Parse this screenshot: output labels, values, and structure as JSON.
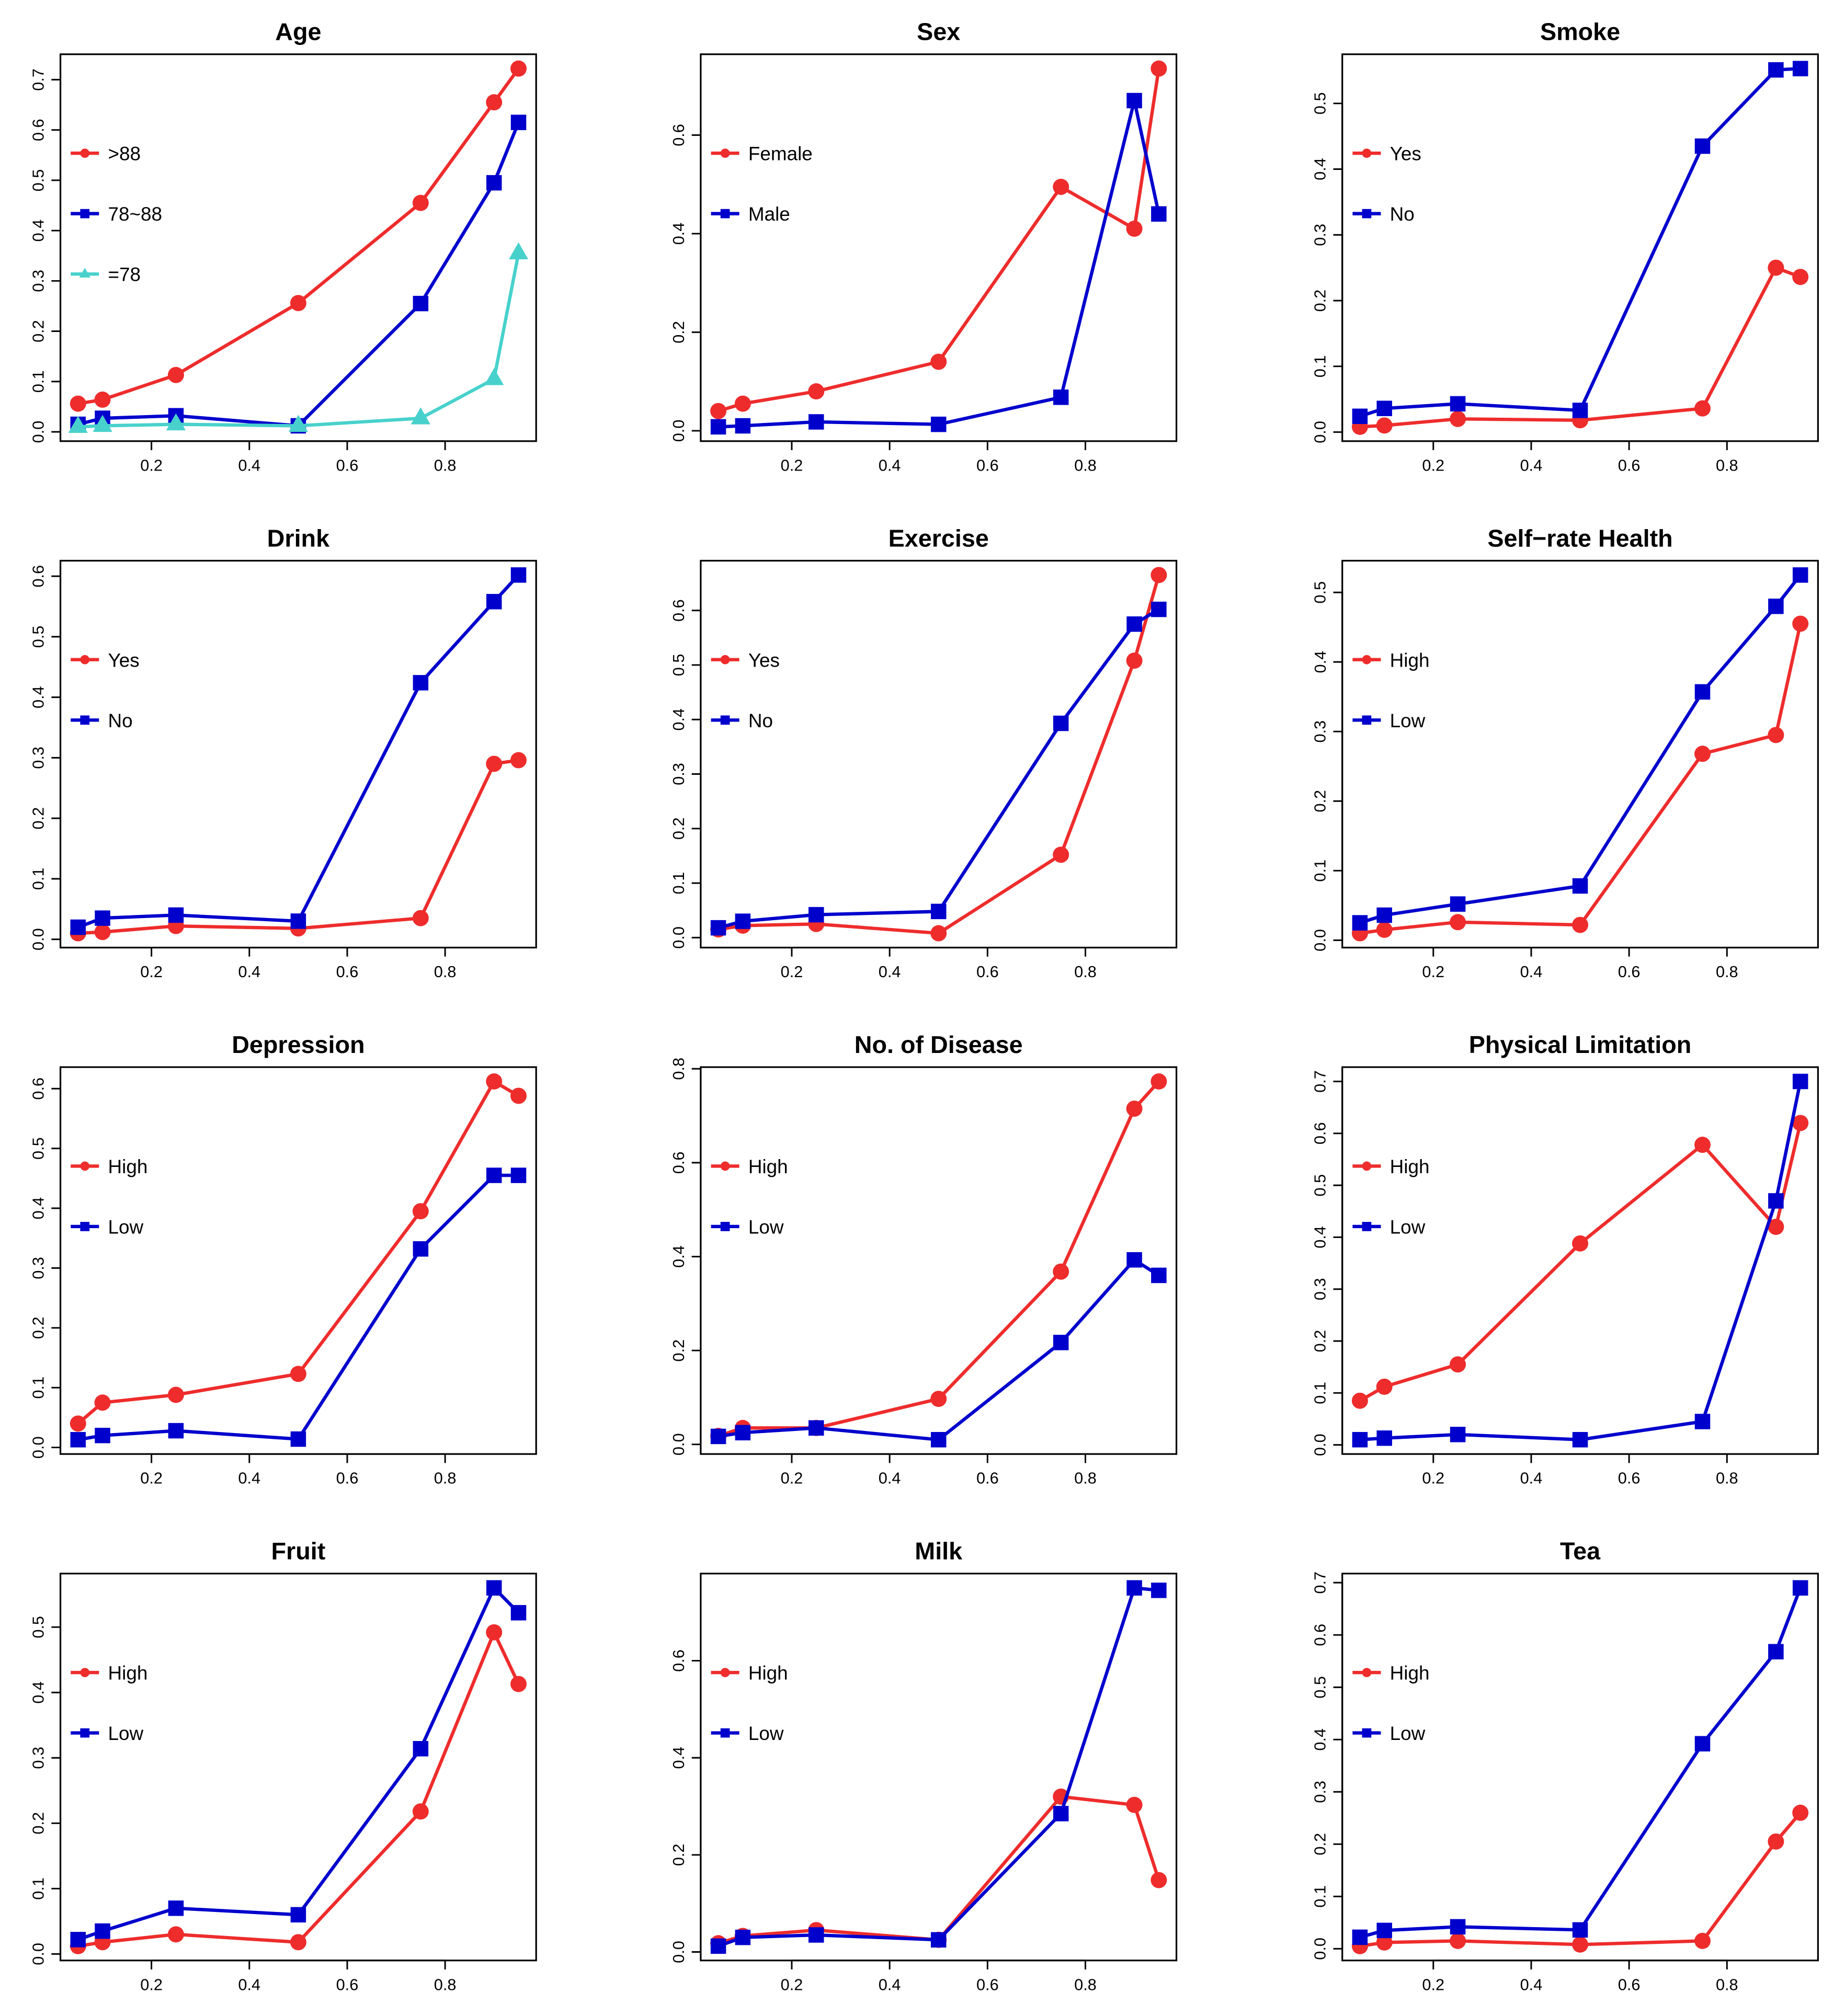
{
  "colors": {
    "red": "#ee2c2c",
    "blue": "#0000cd",
    "cyan": "#48d1cc"
  },
  "chart_data": [
    {
      "type": "line",
      "title": "Age",
      "x": [
        0.05,
        0.1,
        0.25,
        0.5,
        0.75,
        0.9,
        0.95
      ],
      "xticks": [
        0.2,
        0.4,
        0.6,
        0.8
      ],
      "yticks": [
        0,
        0.1,
        0.2,
        0.3,
        0.4,
        0.5,
        0.6,
        0.7
      ],
      "series": [
        {
          "name": ">88",
          "color": "red",
          "marker": "circle",
          "values": [
            0.056,
            0.064,
            0.113,
            0.256,
            0.455,
            0.655,
            0.722
          ]
        },
        {
          "name": "78~88",
          "color": "blue",
          "marker": "square",
          "values": [
            0.015,
            0.027,
            0.032,
            0.012,
            0.255,
            0.495,
            0.615
          ]
        },
        {
          "name": "=78",
          "color": "cyan",
          "marker": "triangle",
          "values": [
            0.01,
            0.012,
            0.015,
            0.012,
            0.027,
            0.105,
            0.355
          ]
        }
      ]
    },
    {
      "type": "line",
      "title": "Sex",
      "x": [
        0.05,
        0.1,
        0.25,
        0.5,
        0.75,
        0.9,
        0.95
      ],
      "xticks": [
        0.2,
        0.4,
        0.6,
        0.8
      ],
      "yticks": [
        0,
        0.2,
        0.4,
        0.6
      ],
      "series": [
        {
          "name": "Female",
          "color": "red",
          "marker": "circle",
          "values": [
            0.04,
            0.055,
            0.08,
            0.14,
            0.495,
            0.41,
            0.735
          ]
        },
        {
          "name": "Male",
          "color": "blue",
          "marker": "square",
          "values": [
            0.008,
            0.01,
            0.018,
            0.013,
            0.068,
            0.67,
            0.44
          ]
        }
      ]
    },
    {
      "type": "line",
      "title": "Smoke",
      "x": [
        0.05,
        0.1,
        0.25,
        0.5,
        0.75,
        0.9,
        0.95
      ],
      "xticks": [
        0.2,
        0.4,
        0.6,
        0.8
      ],
      "yticks": [
        0,
        0.1,
        0.2,
        0.3,
        0.4,
        0.5
      ],
      "series": [
        {
          "name": "Yes",
          "color": "red",
          "marker": "circle",
          "values": [
            0.008,
            0.01,
            0.02,
            0.018,
            0.036,
            0.25,
            0.236
          ]
        },
        {
          "name": "No",
          "color": "blue",
          "marker": "square",
          "values": [
            0.024,
            0.036,
            0.043,
            0.033,
            0.435,
            0.551,
            0.553
          ]
        }
      ]
    },
    {
      "type": "line",
      "title": "Drink",
      "x": [
        0.05,
        0.1,
        0.25,
        0.5,
        0.75,
        0.9,
        0.95
      ],
      "xticks": [
        0.2,
        0.4,
        0.6,
        0.8
      ],
      "yticks": [
        0,
        0.1,
        0.2,
        0.3,
        0.4,
        0.5,
        0.6
      ],
      "series": [
        {
          "name": "Yes",
          "color": "red",
          "marker": "circle",
          "values": [
            0.01,
            0.012,
            0.022,
            0.018,
            0.035,
            0.29,
            0.296
          ]
        },
        {
          "name": "No",
          "color": "blue",
          "marker": "square",
          "values": [
            0.02,
            0.035,
            0.04,
            0.03,
            0.424,
            0.558,
            0.602
          ]
        }
      ]
    },
    {
      "type": "line",
      "title": "Exercise",
      "x": [
        0.05,
        0.1,
        0.25,
        0.5,
        0.75,
        0.9,
        0.95
      ],
      "xticks": [
        0.2,
        0.4,
        0.6,
        0.8
      ],
      "yticks": [
        0,
        0.1,
        0.2,
        0.3,
        0.4,
        0.5,
        0.6
      ],
      "series": [
        {
          "name": "Yes",
          "color": "red",
          "marker": "circle",
          "values": [
            0.015,
            0.022,
            0.025,
            0.008,
            0.152,
            0.508,
            0.665
          ]
        },
        {
          "name": "No",
          "color": "blue",
          "marker": "square",
          "values": [
            0.018,
            0.03,
            0.042,
            0.048,
            0.393,
            0.575,
            0.602
          ]
        }
      ]
    },
    {
      "type": "line",
      "title": "Self−rate Health",
      "x": [
        0.05,
        0.1,
        0.25,
        0.5,
        0.75,
        0.9,
        0.95
      ],
      "xticks": [
        0.2,
        0.4,
        0.6,
        0.8
      ],
      "yticks": [
        0,
        0.1,
        0.2,
        0.3,
        0.4,
        0.5
      ],
      "series": [
        {
          "name": "High",
          "color": "red",
          "marker": "circle",
          "values": [
            0.01,
            0.015,
            0.026,
            0.022,
            0.268,
            0.295,
            0.455
          ]
        },
        {
          "name": "Low",
          "color": "blue",
          "marker": "square",
          "values": [
            0.025,
            0.036,
            0.052,
            0.078,
            0.357,
            0.48,
            0.525
          ]
        }
      ]
    },
    {
      "type": "line",
      "title": "Depression",
      "x": [
        0.05,
        0.1,
        0.25,
        0.5,
        0.75,
        0.9,
        0.95
      ],
      "xticks": [
        0.2,
        0.4,
        0.6,
        0.8
      ],
      "yticks": [
        0,
        0.1,
        0.2,
        0.3,
        0.4,
        0.5,
        0.6
      ],
      "series": [
        {
          "name": "High",
          "color": "red",
          "marker": "circle",
          "values": [
            0.04,
            0.075,
            0.088,
            0.123,
            0.395,
            0.612,
            0.588
          ]
        },
        {
          "name": "Low",
          "color": "blue",
          "marker": "square",
          "values": [
            0.013,
            0.02,
            0.028,
            0.014,
            0.332,
            0.455,
            0.455
          ]
        }
      ]
    },
    {
      "type": "line",
      "title": "No. of Disease",
      "x": [
        0.05,
        0.1,
        0.25,
        0.5,
        0.75,
        0.9,
        0.95
      ],
      "xticks": [
        0.2,
        0.4,
        0.6,
        0.8
      ],
      "yticks": [
        0,
        0.2,
        0.4,
        0.6,
        0.8
      ],
      "series": [
        {
          "name": "High",
          "color": "red",
          "marker": "circle",
          "values": [
            0.018,
            0.035,
            0.035,
            0.097,
            0.368,
            0.715,
            0.773
          ]
        },
        {
          "name": "Low",
          "color": "blue",
          "marker": "square",
          "values": [
            0.017,
            0.025,
            0.035,
            0.01,
            0.217,
            0.393,
            0.36
          ]
        }
      ]
    },
    {
      "type": "line",
      "title": "Physical Limitation",
      "x": [
        0.05,
        0.1,
        0.25,
        0.5,
        0.75,
        0.9,
        0.95
      ],
      "xticks": [
        0.2,
        0.4,
        0.6,
        0.8
      ],
      "yticks": [
        0,
        0.1,
        0.2,
        0.3,
        0.4,
        0.5,
        0.6,
        0.7
      ],
      "series": [
        {
          "name": "High",
          "color": "red",
          "marker": "circle",
          "values": [
            0.085,
            0.112,
            0.155,
            0.388,
            0.578,
            0.42,
            0.62
          ]
        },
        {
          "name": "Low",
          "color": "blue",
          "marker": "square",
          "values": [
            0.01,
            0.013,
            0.02,
            0.01,
            0.045,
            0.47,
            0.7
          ]
        }
      ]
    },
    {
      "type": "line",
      "title": "Fruit",
      "x": [
        0.05,
        0.1,
        0.25,
        0.5,
        0.75,
        0.9,
        0.95
      ],
      "xticks": [
        0.2,
        0.4,
        0.6,
        0.8
      ],
      "yticks": [
        0,
        0.1,
        0.2,
        0.3,
        0.4,
        0.5
      ],
      "series": [
        {
          "name": "High",
          "color": "red",
          "marker": "circle",
          "values": [
            0.012,
            0.018,
            0.03,
            0.018,
            0.218,
            0.492,
            0.413
          ]
        },
        {
          "name": "Low",
          "color": "blue",
          "marker": "square",
          "values": [
            0.022,
            0.035,
            0.07,
            0.06,
            0.314,
            0.56,
            0.522
          ]
        }
      ]
    },
    {
      "type": "line",
      "title": "Milk",
      "x": [
        0.05,
        0.1,
        0.25,
        0.5,
        0.75,
        0.9,
        0.95
      ],
      "xticks": [
        0.2,
        0.4,
        0.6,
        0.8
      ],
      "yticks": [
        0,
        0.2,
        0.4,
        0.6
      ],
      "series": [
        {
          "name": "High",
          "color": "red",
          "marker": "circle",
          "values": [
            0.018,
            0.033,
            0.045,
            0.025,
            0.32,
            0.303,
            0.148
          ]
        },
        {
          "name": "Low",
          "color": "blue",
          "marker": "square",
          "values": [
            0.012,
            0.03,
            0.035,
            0.025,
            0.285,
            0.75,
            0.745
          ]
        }
      ]
    },
    {
      "type": "line",
      "title": "Tea",
      "x": [
        0.05,
        0.1,
        0.25,
        0.5,
        0.75,
        0.9,
        0.95
      ],
      "xticks": [
        0.2,
        0.4,
        0.6,
        0.8
      ],
      "yticks": [
        0,
        0.1,
        0.2,
        0.3,
        0.4,
        0.5,
        0.6,
        0.7
      ],
      "series": [
        {
          "name": "High",
          "color": "red",
          "marker": "circle",
          "values": [
            0.005,
            0.012,
            0.015,
            0.008,
            0.015,
            0.205,
            0.26
          ]
        },
        {
          "name": "Low",
          "color": "blue",
          "marker": "square",
          "values": [
            0.022,
            0.035,
            0.042,
            0.036,
            0.392,
            0.568,
            0.69
          ]
        }
      ]
    }
  ]
}
